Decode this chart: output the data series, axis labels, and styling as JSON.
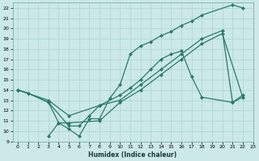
{
  "xlabel": "Humidex (Indice chaleur)",
  "bg_color": "#cce8e8",
  "grid_color": "#b0d8d8",
  "line_color": "#2a7a6a",
  "xlim": [
    -0.5,
    23
  ],
  "ylim": [
    9,
    22.5
  ],
  "xticks": [
    0,
    1,
    2,
    3,
    4,
    5,
    6,
    7,
    8,
    9,
    10,
    11,
    12,
    13,
    14,
    15,
    16,
    17,
    18,
    19,
    20,
    21,
    22,
    23
  ],
  "yticks": [
    9,
    10,
    11,
    12,
    13,
    14,
    15,
    16,
    17,
    18,
    19,
    20,
    21,
    22
  ],
  "curve1_x": [
    0,
    1,
    3,
    4,
    5,
    6,
    7,
    8,
    9,
    10,
    11,
    12,
    13,
    14,
    15,
    16,
    17,
    18,
    21,
    22
  ],
  "curve1_y": [
    14.0,
    13.7,
    12.8,
    10.8,
    10.2,
    9.5,
    11.2,
    11.2,
    13.2,
    14.5,
    17.5,
    18.3,
    18.7,
    19.3,
    19.7,
    20.3,
    20.7,
    21.3,
    22.3,
    22.0
  ],
  "curve2_x": [
    0,
    1,
    3,
    5,
    6,
    7,
    8,
    10,
    11,
    12,
    13,
    14,
    15,
    16,
    17,
    18,
    21,
    22
  ],
  "curve2_y": [
    14.0,
    13.7,
    12.8,
    10.5,
    10.5,
    11.5,
    12.5,
    13.5,
    14.2,
    15.0,
    16.0,
    17.0,
    17.5,
    17.8,
    15.3,
    13.3,
    12.8,
    13.3
  ],
  "curve3_x": [
    0,
    3,
    5,
    8,
    10,
    12,
    14,
    16,
    18,
    20,
    21,
    22
  ],
  "curve3_y": [
    14.0,
    13.0,
    11.5,
    12.5,
    13.0,
    14.5,
    16.0,
    17.5,
    19.0,
    19.8,
    12.8,
    13.5
  ],
  "curve4_x": [
    3,
    4,
    5,
    8,
    10,
    12,
    14,
    16,
    18,
    20,
    22
  ],
  "curve4_y": [
    9.5,
    10.8,
    10.8,
    11.0,
    12.8,
    14.0,
    15.5,
    17.0,
    18.5,
    19.5,
    13.3
  ],
  "marker": "D",
  "markersize": 2.5,
  "lw": 0.9
}
